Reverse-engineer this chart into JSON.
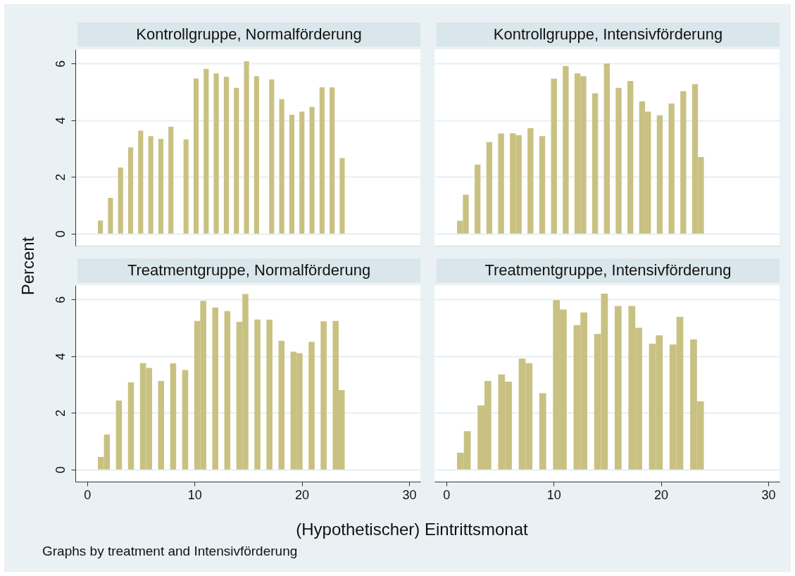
{
  "chart_data": [
    {
      "type": "histogram",
      "title": "Kontrollgruppe, Normalförderung",
      "xlabel": "(Hypothetischer) Eintrittsmonat",
      "ylabel": "Percent",
      "annotations": [
        "Graphs by treatment and Intensivförderung"
      ],
      "color": "#c9c182",
      "grid": "y",
      "tick_labels": "y",
      "xlim": [
        -1.1,
        31.05
      ],
      "ylim": [
        -0.43,
        6.5
      ],
      "yticks": [
        0,
        2,
        4,
        6
      ],
      "bins": [
        1,
        1.469,
        1.939,
        2.408,
        2.878,
        3.347,
        3.816,
        4.286,
        4.755,
        5.224,
        5.694,
        6.163,
        6.633,
        7.102,
        7.571,
        8.041,
        8.51,
        8.98,
        9.449,
        9.918,
        10.388,
        10.857,
        11.327,
        11.796,
        12.265,
        12.735,
        13.204,
        13.673,
        14.143,
        14.612,
        15.082,
        15.551,
        16.02,
        16.49,
        16.959,
        17.429,
        17.898,
        18.367,
        18.837,
        19.306,
        19.776,
        20.245,
        20.714,
        21.184,
        21.653,
        22.122,
        22.592,
        23.061,
        23.531,
        24
      ],
      "values": [
        0.46,
        0,
        1.26,
        0,
        2.33,
        0,
        3.04,
        0,
        3.63,
        0,
        3.44,
        0,
        3.34,
        0,
        3.77,
        0,
        0,
        3.32,
        0,
        5.47,
        0,
        5.81,
        0,
        5.65,
        0,
        5.53,
        0,
        5.14,
        0,
        6.08,
        0,
        5.55,
        0,
        0,
        5.44,
        0,
        4.74,
        0,
        4.19,
        0,
        4.3,
        0,
        4.47,
        0,
        5.16,
        0,
        5.16,
        0,
        2.66
      ]
    },
    {
      "type": "histogram",
      "title": "Kontrollgruppe, Intensivförderung",
      "color": "#c9c182",
      "grid": "y",
      "tick_labels": false,
      "xlim": [
        -1.1,
        31.05
      ],
      "ylim": [
        -0.43,
        6.5
      ],
      "yticks": [
        0,
        2,
        4,
        6
      ],
      "bins": [
        1,
        1.548,
        2.095,
        2.643,
        3.19,
        3.738,
        4.286,
        4.833,
        5.381,
        5.929,
        6.476,
        7.024,
        7.571,
        8.119,
        8.667,
        9.214,
        9.762,
        10.31,
        10.857,
        11.405,
        11.952,
        12.5,
        13.048,
        13.595,
        14.143,
        14.69,
        15.238,
        15.786,
        16.333,
        16.881,
        17.429,
        17.976,
        18.524,
        19.071,
        19.619,
        20.167,
        20.714,
        21.262,
        21.81,
        22.357,
        22.905,
        23.452,
        24
      ],
      "values": [
        0.45,
        1.37,
        0,
        2.43,
        0,
        3.23,
        0,
        3.53,
        0,
        3.54,
        3.47,
        0,
        3.72,
        0,
        3.44,
        0,
        5.46,
        0,
        5.91,
        0,
        5.65,
        5.55,
        0,
        4.95,
        0,
        6.0,
        0,
        5.14,
        0,
        5.38,
        0,
        4.66,
        4.3,
        0,
        4.17,
        0,
        4.59,
        0,
        5.02,
        0,
        5.27,
        2.7
      ]
    },
    {
      "type": "histogram",
      "title": "Treatmentgruppe, Normalförderung",
      "color": "#c9c182",
      "grid": "y",
      "xlim": [
        -1.1,
        31.05
      ],
      "ylim": [
        -0.43,
        6.5
      ],
      "xticks": [
        0,
        10,
        20,
        30
      ],
      "yticks": [
        0,
        2,
        4,
        6
      ],
      "bins": [
        1,
        1.561,
        2.122,
        2.683,
        3.244,
        3.805,
        4.366,
        4.927,
        5.488,
        6.049,
        6.61,
        7.171,
        7.732,
        8.293,
        8.854,
        9.415,
        9.976,
        10.537,
        11.098,
        11.659,
        12.22,
        12.78,
        13.341,
        13.902,
        14.463,
        15.024,
        15.585,
        16.146,
        16.707,
        17.268,
        17.829,
        18.39,
        18.951,
        19.512,
        20.073,
        20.634,
        21.195,
        21.756,
        22.317,
        22.878,
        23.439,
        24
      ],
      "values": [
        0.44,
        1.23,
        0,
        2.43,
        0,
        3.07,
        0,
        3.75,
        3.58,
        0,
        3.12,
        0,
        3.74,
        0,
        3.51,
        0,
        5.24,
        5.95,
        0,
        5.71,
        0,
        5.59,
        0,
        5.21,
        6.19,
        0,
        5.29,
        0,
        5.28,
        0,
        4.54,
        0,
        4.15,
        4.1,
        0,
        4.5,
        0,
        5.23,
        0,
        5.24,
        2.8
      ]
    },
    {
      "type": "histogram",
      "title": "Treatmentgruppe, Intensivförderung",
      "color": "#c9c182",
      "grid": "y",
      "tick_labels": "x",
      "xlim": [
        -1.1,
        31.05
      ],
      "ylim": [
        -0.43,
        6.5
      ],
      "xticks": [
        0,
        10,
        20,
        30
      ],
      "yticks": [
        0,
        2,
        4,
        6
      ],
      "bins": [
        1,
        1.639,
        2.278,
        2.917,
        3.556,
        4.194,
        4.833,
        5.472,
        6.111,
        6.75,
        7.389,
        8.028,
        8.667,
        9.306,
        9.944,
        10.583,
        11.222,
        11.861,
        12.5,
        13.139,
        13.778,
        14.417,
        15.056,
        15.694,
        16.333,
        16.972,
        17.611,
        18.25,
        18.889,
        19.528,
        20.167,
        20.806,
        21.444,
        22.083,
        22.722,
        23.361,
        24
      ],
      "values": [
        0.59,
        1.35,
        0,
        2.26,
        3.12,
        0,
        3.35,
        3.1,
        0,
        3.91,
        3.75,
        0,
        2.69,
        0,
        5.97,
        5.64,
        0,
        5.09,
        5.54,
        0,
        4.78,
        6.2,
        0,
        5.77,
        0,
        5.77,
        5.0,
        0,
        4.44,
        4.73,
        0,
        4.41,
        5.38,
        0,
        4.59,
        2.4
      ]
    }
  ]
}
